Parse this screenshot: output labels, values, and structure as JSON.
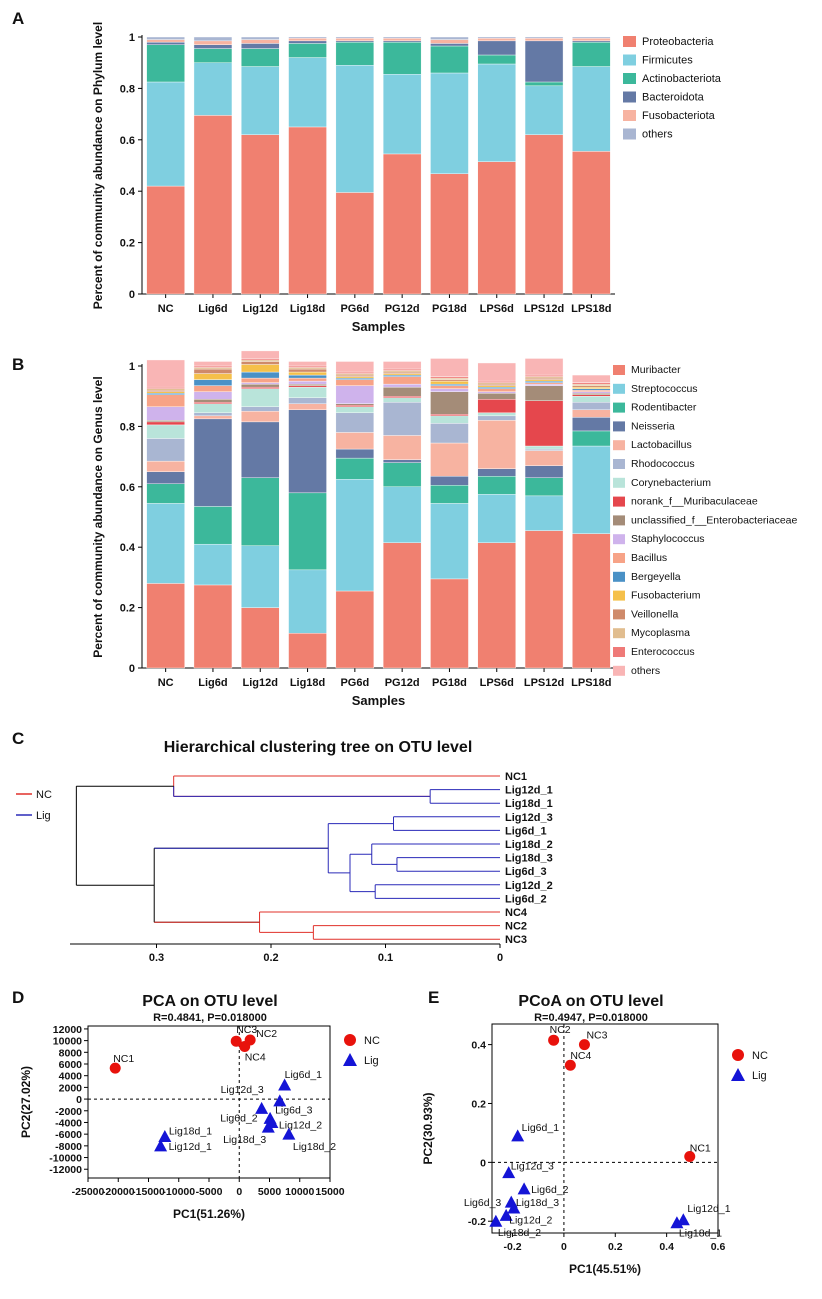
{
  "panels": {
    "A": "A",
    "B": "B",
    "C": "C",
    "D": "D",
    "E": "E"
  },
  "chart_data": [
    {
      "id": "A",
      "type": "bar",
      "stacked": true,
      "title": "",
      "xlabel": "Samples",
      "ylabel": "Percent of community abundance on Phylum level",
      "ylim": [
        0,
        1
      ],
      "yticks": [
        "0",
        "0.2",
        "0.4",
        "0.6",
        "0.8",
        "1"
      ],
      "categories": [
        "NC",
        "Lig6d",
        "Lig12d",
        "Lig18d",
        "PG6d",
        "PG12d",
        "PG18d",
        "LPS6d",
        "LPS12d",
        "LPS18d"
      ],
      "series": [
        {
          "name": "Proteobacteria",
          "color": "#f08070",
          "values": [
            0.42,
            0.695,
            0.62,
            0.65,
            0.395,
            0.545,
            0.468,
            0.515,
            0.62,
            0.555
          ]
        },
        {
          "name": "Firmicutes",
          "color": "#7fcfe0",
          "values": [
            0.405,
            0.205,
            0.265,
            0.27,
            0.495,
            0.31,
            0.392,
            0.38,
            0.19,
            0.33
          ]
        },
        {
          "name": "Actinobacteriota",
          "color": "#3cb89b",
          "values": [
            0.145,
            0.055,
            0.07,
            0.055,
            0.09,
            0.125,
            0.105,
            0.035,
            0.015,
            0.095
          ]
        },
        {
          "name": "Bacteroidota",
          "color": "#6479a5",
          "values": [
            0.01,
            0.015,
            0.02,
            0.01,
            0.005,
            0.005,
            0.01,
            0.055,
            0.16,
            0.005
          ]
        },
        {
          "name": "Fusobacteriota",
          "color": "#f7b3a1",
          "values": [
            0.01,
            0.015,
            0.015,
            0.01,
            0.01,
            0.01,
            0.015,
            0.01,
            0.01,
            0.01
          ]
        },
        {
          "name": "others",
          "color": "#a9b6d2",
          "values": [
            0.01,
            0.015,
            0.01,
            0.005,
            0.005,
            0.005,
            0.01,
            0.005,
            0.005,
            0.005
          ]
        }
      ]
    },
    {
      "id": "B",
      "type": "bar",
      "stacked": true,
      "title": "",
      "xlabel": "Samples",
      "ylabel": "Percent of community abundance on Genus level",
      "ylim": [
        0,
        1
      ],
      "yticks": [
        "0",
        "0.2",
        "0.4",
        "0.6",
        "0.8",
        "1"
      ],
      "categories": [
        "NC",
        "Lig6d",
        "Lig12d",
        "Lig18d",
        "PG6d",
        "PG12d",
        "PG18d",
        "LPS6d",
        "LPS12d",
        "LPS18d"
      ],
      "series": [
        {
          "name": "Muribacter",
          "color": "#f08070",
          "values": [
            0.28,
            0.275,
            0.2,
            0.115,
            0.255,
            0.415,
            0.295,
            0.415,
            0.455,
            0.445
          ]
        },
        {
          "name": "Streptococcus",
          "color": "#7fcfe0",
          "values": [
            0.265,
            0.135,
            0.205,
            0.21,
            0.37,
            0.185,
            0.25,
            0.16,
            0.115,
            0.29
          ]
        },
        {
          "name": "Rodentibacter",
          "color": "#3cb89b",
          "values": [
            0.065,
            0.125,
            0.225,
            0.255,
            0.07,
            0.08,
            0.06,
            0.06,
            0.06,
            0.05
          ]
        },
        {
          "name": "Neisseria",
          "color": "#6479a5",
          "values": [
            0.04,
            0.29,
            0.185,
            0.275,
            0.03,
            0.01,
            0.03,
            0.025,
            0.04,
            0.045
          ]
        },
        {
          "name": "Lactobacillus",
          "color": "#f7b3a1",
          "values": [
            0.035,
            0.01,
            0.035,
            0.02,
            0.055,
            0.08,
            0.11,
            0.16,
            0.05,
            0.025
          ]
        },
        {
          "name": "Rhodococcus",
          "color": "#a9b6d2",
          "values": [
            0.075,
            0.01,
            0.015,
            0.02,
            0.065,
            0.11,
            0.065,
            0.015,
            0.005,
            0.025
          ]
        },
        {
          "name": "Corynebacterium",
          "color": "#b9e4da",
          "values": [
            0.045,
            0.03,
            0.06,
            0.035,
            0.02,
            0.015,
            0.025,
            0.01,
            0.01,
            0.02
          ]
        },
        {
          "name": "norank_f__Muribaculaceae",
          "color": "#e5474d",
          "values": [
            0.01,
            0.005,
            0.005,
            0.005,
            0.005,
            0.005,
            0.005,
            0.045,
            0.15,
            0.005
          ]
        },
        {
          "name": "unclassified_f__Enterobacteriaceae",
          "color": "#a48c78",
          "values": [
            0.005,
            0.01,
            0.01,
            0.005,
            0.005,
            0.03,
            0.075,
            0.02,
            0.05,
            0.005
          ]
        },
        {
          "name": "Staphylococcus",
          "color": "#cfb3ec",
          "values": [
            0.045,
            0.025,
            0.005,
            0.01,
            0.06,
            0.01,
            0.01,
            0.005,
            0.005,
            0.005
          ]
        },
        {
          "name": "Bacillus",
          "color": "#f7a387",
          "values": [
            0.04,
            0.02,
            0.015,
            0.01,
            0.02,
            0.025,
            0.01,
            0.01,
            0.005,
            0.005
          ]
        },
        {
          "name": "Bergeyella",
          "color": "#4a91c6",
          "values": [
            0.005,
            0.02,
            0.02,
            0.01,
            0.005,
            0.005,
            0.005,
            0.005,
            0.005,
            0.005
          ]
        },
        {
          "name": "Fusobacterium",
          "color": "#f5c04a",
          "values": [
            0.005,
            0.02,
            0.025,
            0.01,
            0.005,
            0.005,
            0.01,
            0.005,
            0.005,
            0.005
          ]
        },
        {
          "name": "Veillonella",
          "color": "#cf8a6a",
          "values": [
            0.005,
            0.015,
            0.01,
            0.01,
            0.005,
            0.005,
            0.005,
            0.005,
            0.005,
            0.005
          ]
        },
        {
          "name": "Mycoplasma",
          "color": "#e1bd8f",
          "values": [
            0.005,
            0.005,
            0.005,
            0.005,
            0.005,
            0.005,
            0.005,
            0.005,
            0.005,
            0.005
          ]
        },
        {
          "name": "Enterococcus",
          "color": "#ef7a78",
          "values": [
            0.005,
            0.005,
            0.005,
            0.005,
            0.005,
            0.005,
            0.005,
            0.005,
            0.005,
            0.005
          ]
        },
        {
          "name": "others",
          "color": "#f9b5b5",
          "values": [
            0.09,
            0.015,
            0.025,
            0.015,
            0.035,
            0.025,
            0.06,
            0.06,
            0.055,
            0.025
          ]
        }
      ]
    },
    {
      "id": "C",
      "type": "dendrogram",
      "title": "Hierarchical clustering tree on OTU level",
      "legend": [
        {
          "name": "NC",
          "color": "#e0302a"
        },
        {
          "name": "Lig",
          "color": "#2a2ab8"
        }
      ],
      "xticks": [
        "0.3",
        "0.2",
        "0.1",
        "0"
      ],
      "leaves": [
        "NC1",
        "Lig12d_1",
        "Lig18d_1",
        "Lig12d_3",
        "Lig6d_1",
        "Lig18d_2",
        "Lig18d_3",
        "Lig6d_3",
        "Lig12d_2",
        "Lig6d_2",
        "NC4",
        "NC2",
        "NC3"
      ],
      "merges": [
        {
          "a": "Lig12d_1",
          "b": "Lig18d_1",
          "h": 0.061,
          "group": "Lig"
        },
        {
          "a": "Lig12d_3",
          "b": "Lig6d_1",
          "h": 0.093,
          "group": "Lig"
        },
        {
          "a": "Lig18d_3",
          "b": "Lig6d_3",
          "h": 0.09,
          "group": "Lig"
        },
        {
          "a": "Lig18d_2",
          "b": "Lig18d_3+Lig6d_3",
          "h": 0.112,
          "group": "Lig"
        },
        {
          "a": "Lig12d_2",
          "b": "Lig6d_2",
          "h": 0.109,
          "group": "Lig"
        },
        {
          "a": "Lig18d_2+Lig18d_3+Lig6d_3",
          "b": "Lig12d_2+Lig6d_2",
          "h": 0.131,
          "group": "Lig"
        },
        {
          "a": "Lig12d_3+Lig6d_1",
          "b": "Lig18d_2+Lig18d_3+Lig6d_3+Lig12d_2+Lig6d_2",
          "h": 0.15,
          "group": "Lig"
        },
        {
          "a": "NC2",
          "b": "NC3",
          "h": 0.163,
          "group": "NC"
        },
        {
          "a": "NC4",
          "b": "NC2+NC3",
          "h": 0.21,
          "group": "NC"
        },
        {
          "a": "NC1",
          "b": "Lig12d_1+Lig18d_1",
          "h": 0.285,
          "group": "mixed"
        },
        {
          "a": "Lig-cluster",
          "b": "NC4+NC2+NC3",
          "h": 0.302,
          "group": "mixed"
        },
        {
          "a": "top",
          "b": "bottom",
          "h": 0.37,
          "group": "root"
        }
      ]
    },
    {
      "id": "D",
      "type": "scatter",
      "title": "PCA on OTU level",
      "subtitle": "R=0.4841, P=0.018000",
      "xlabel": "PC1(51.26%)",
      "ylabel": "PC2(27.02%)",
      "xlim": [
        -25000,
        15000
      ],
      "ylim": [
        -13500,
        12500
      ],
      "xticks": [
        "-25000",
        "-20000",
        "-15000",
        "-10000",
        "-5000",
        "0",
        "5000",
        "10000",
        "15000"
      ],
      "yticks": [
        "12000",
        "10000",
        "8000",
        "6000",
        "4000",
        "2000",
        "0",
        "-2000",
        "-4000",
        "-6000",
        "-8000",
        "-10000",
        "-12000"
      ],
      "legend": [
        {
          "name": "NC",
          "color": "#e8120c",
          "marker": "circle"
        },
        {
          "name": "Lig",
          "color": "#1414d6",
          "marker": "triangle"
        }
      ],
      "points": [
        {
          "label": "NC1",
          "group": "NC",
          "x": -20500,
          "y": 5300
        },
        {
          "label": "NC3",
          "group": "NC",
          "x": -500,
          "y": 9900
        },
        {
          "label": "NC2",
          "group": "NC",
          "x": 1800,
          "y": 10100
        },
        {
          "label": "NC4",
          "group": "NC",
          "x": 900,
          "y": 9000
        },
        {
          "label": "Lig6d_1",
          "group": "Lig",
          "x": 7500,
          "y": 2400
        },
        {
          "label": "Lig12d_3",
          "group": "Lig",
          "x": 6700,
          "y": -300
        },
        {
          "label": "Lig6d_2",
          "group": "Lig",
          "x": 3700,
          "y": -1600
        },
        {
          "label": "Lig6d_3",
          "group": "Lig",
          "x": 5100,
          "y": -3300
        },
        {
          "label": "Lig12d_2",
          "group": "Lig",
          "x": 5400,
          "y": -4000
        },
        {
          "label": "Lig18d_3",
          "group": "Lig",
          "x": 4800,
          "y": -4800
        },
        {
          "label": "Lig18d_2",
          "group": "Lig",
          "x": 8200,
          "y": -6000
        },
        {
          "label": "Lig18d_1",
          "group": "Lig",
          "x": -12300,
          "y": -6400
        },
        {
          "label": "Lig12d_1",
          "group": "Lig",
          "x": -13000,
          "y": -8000
        }
      ]
    },
    {
      "id": "E",
      "type": "scatter",
      "title": "PCoA on OTU level",
      "subtitle": "R=0.4947, P=0.018000",
      "xlabel": "PC1(45.51%)",
      "ylabel": "PC2(30.93%)",
      "xlim": [
        -0.28,
        0.6
      ],
      "ylim": [
        -0.24,
        0.47
      ],
      "xticks": [
        "-0.2",
        "0",
        "0.2",
        "0.4",
        "0.6"
      ],
      "yticks": [
        "0.4",
        "0.2",
        "0",
        "-0.2"
      ],
      "legend": [
        {
          "name": "NC",
          "color": "#e8120c",
          "marker": "circle"
        },
        {
          "name": "Lig",
          "color": "#1414d6",
          "marker": "triangle"
        }
      ],
      "points": [
        {
          "label": "NC2",
          "group": "NC",
          "x": -0.04,
          "y": 0.415
        },
        {
          "label": "NC3",
          "group": "NC",
          "x": 0.08,
          "y": 0.4
        },
        {
          "label": "NC4",
          "group": "NC",
          "x": 0.025,
          "y": 0.33
        },
        {
          "label": "NC1",
          "group": "NC",
          "x": 0.49,
          "y": 0.02
        },
        {
          "label": "Lig6d_1",
          "group": "Lig",
          "x": -0.18,
          "y": 0.09
        },
        {
          "label": "Lig12d_3",
          "group": "Lig",
          "x": -0.215,
          "y": -0.035
        },
        {
          "label": "Lig6d_2",
          "group": "Lig",
          "x": -0.155,
          "y": -0.09
        },
        {
          "label": "Lig6d_3",
          "group": "Lig",
          "x": -0.205,
          "y": -0.135
        },
        {
          "label": "Lig18d_3",
          "group": "Lig",
          "x": -0.195,
          "y": -0.155
        },
        {
          "label": "Lig12d_2",
          "group": "Lig",
          "x": -0.225,
          "y": -0.18
        },
        {
          "label": "Lig18d_2",
          "group": "Lig",
          "x": -0.265,
          "y": -0.2
        },
        {
          "label": "Lig12d_1",
          "group": "Lig",
          "x": 0.465,
          "y": -0.195
        },
        {
          "label": "Lig18d_1",
          "group": "Lig",
          "x": 0.44,
          "y": -0.205
        }
      ]
    }
  ]
}
